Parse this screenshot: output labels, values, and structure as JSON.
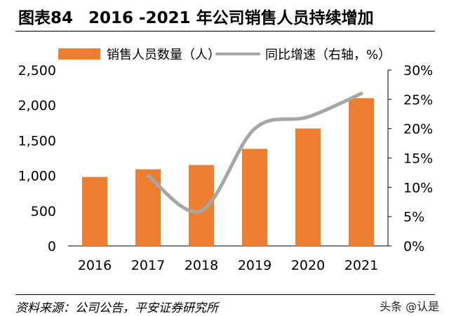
{
  "figure": {
    "number": "图表84",
    "title": "2016 -2021 年公司销售人员持续增加",
    "source": "资料来源：公司公告，平安证券研究所",
    "watermark": "头条 @认是"
  },
  "colors": {
    "bar": "#ED7D31",
    "line": "#A6A6A6"
  },
  "chart_data": {
    "type": "bar",
    "categories": [
      "2016",
      "2017",
      "2018",
      "2019",
      "2020",
      "2021"
    ],
    "series": [
      {
        "name": "销售人员数量（人）",
        "type": "bar",
        "axis": "left",
        "values": [
          980,
          1090,
          1150,
          1380,
          1670,
          2100
        ]
      },
      {
        "name": "同比增速（右轴，%）",
        "type": "line",
        "axis": "right",
        "smooth": true,
        "values": [
          null,
          12.0,
          6.0,
          20.0,
          22.0,
          26.0
        ]
      }
    ],
    "y_left": {
      "range": [
        0,
        2500
      ],
      "ticks": [
        0,
        500,
        1000,
        1500,
        2000,
        2500
      ],
      "tick_labels": [
        "0",
        "500",
        "1,000",
        "1,500",
        "2,000",
        "2,500"
      ]
    },
    "y_right": {
      "range": [
        0,
        30
      ],
      "ticks": [
        0,
        5,
        10,
        15,
        20,
        25,
        30
      ],
      "tick_labels": [
        "0%",
        "5%",
        "10%",
        "15%",
        "20%",
        "25%",
        "30%"
      ]
    },
    "legend": "top",
    "grid": false
  }
}
